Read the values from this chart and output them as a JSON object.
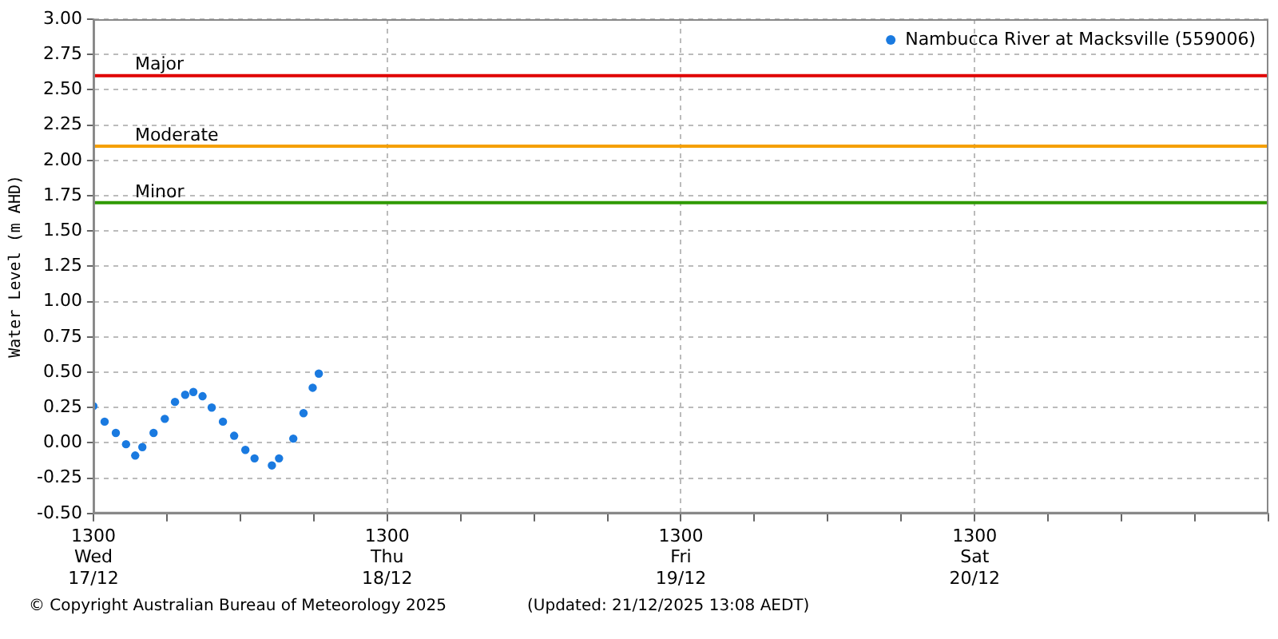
{
  "chart_data": {
    "type": "scatter",
    "ylabel": "Water Level (m AHD)",
    "marker": "circle",
    "legend": "top right",
    "grid": true,
    "x": [
      "2025-12-17T13:00",
      "2025-12-17T13:55",
      "2025-12-17T14:50",
      "2025-12-17T15:40",
      "2025-12-17T16:25",
      "2025-12-17T17:00",
      "2025-12-17T17:55",
      "2025-12-17T18:50",
      "2025-12-17T19:40",
      "2025-12-17T20:30",
      "2025-12-17T21:10",
      "2025-12-17T21:55",
      "2025-12-17T22:40",
      "2025-12-17T23:35",
      "2025-12-18T00:30",
      "2025-12-18T01:25",
      "2025-12-18T02:10",
      "2025-12-18T03:35",
      "2025-12-18T04:10",
      "2025-12-18T05:20",
      "2025-12-18T06:10",
      "2025-12-18T06:55",
      "2025-12-18T07:25"
    ],
    "series": [
      {
        "name": "Nambucca River at Macksville (559006)",
        "color": "#1a7ae0",
        "values": [
          0.26,
          0.15,
          0.07,
          -0.01,
          -0.09,
          -0.03,
          0.07,
          0.17,
          0.29,
          0.34,
          0.36,
          0.33,
          0.25,
          0.15,
          0.05,
          -0.05,
          -0.11,
          -0.16,
          -0.11,
          0.03,
          0.21,
          0.39,
          0.49
        ]
      }
    ],
    "xlim": [
      "2025-12-17T13:00",
      "2025-12-21T13:00"
    ],
    "xticks": [
      {
        "value": "2025-12-17T13:00",
        "label": "1300\nWed\n17/12"
      },
      {
        "value": "2025-12-17T19:00",
        "label": null
      },
      {
        "value": "2025-12-18T01:00",
        "label": null
      },
      {
        "value": "2025-12-18T07:00",
        "label": null
      },
      {
        "value": "2025-12-18T13:00",
        "label": "1300\nThu\n18/12"
      },
      {
        "value": "2025-12-18T19:00",
        "label": null
      },
      {
        "value": "2025-12-19T01:00",
        "label": null
      },
      {
        "value": "2025-12-19T07:00",
        "label": null
      },
      {
        "value": "2025-12-19T13:00",
        "label": "1300\nFri\n19/12"
      },
      {
        "value": "2025-12-19T19:00",
        "label": null
      },
      {
        "value": "2025-12-20T01:00",
        "label": null
      },
      {
        "value": "2025-12-20T07:00",
        "label": null
      },
      {
        "value": "2025-12-20T13:00",
        "label": "1300\nSat\n20/12"
      },
      {
        "value": "2025-12-20T19:00",
        "label": null
      },
      {
        "value": "2025-12-21T01:00",
        "label": null
      },
      {
        "value": "2025-12-21T07:00",
        "label": null
      },
      {
        "value": "2025-12-21T13:00",
        "label": null
      }
    ],
    "ylim": [
      -0.5,
      3.0
    ],
    "yticks": [
      {
        "value": -0.5,
        "label": "-0.50"
      },
      {
        "value": -0.25,
        "label": "-0.25"
      },
      {
        "value": 0,
        "label": "0.00"
      },
      {
        "value": 0.25,
        "label": "0.25"
      },
      {
        "value": 0.5,
        "label": "0.50"
      },
      {
        "value": 0.75,
        "label": "0.75"
      },
      {
        "value": 1,
        "label": "1.00"
      },
      {
        "value": 1.25,
        "label": "1.25"
      },
      {
        "value": 1.5,
        "label": "1.50"
      },
      {
        "value": 1.75,
        "label": "1.75"
      },
      {
        "value": 2,
        "label": "2.00"
      },
      {
        "value": 2.25,
        "label": "2.25"
      },
      {
        "value": 2.5,
        "label": "2.50"
      },
      {
        "value": 2.75,
        "label": "2.75"
      },
      {
        "value": 3,
        "label": "3.00"
      }
    ],
    "ref_lines": [
      {
        "axis": "y",
        "value": 2.6,
        "label": "Major",
        "color": "#e00000"
      },
      {
        "axis": "y",
        "value": 2.1,
        "label": "Moderate",
        "color": "#f5a000"
      },
      {
        "axis": "y",
        "value": 1.7,
        "label": "Minor",
        "color": "#2e9a00"
      }
    ],
    "annotations": [
      "© Copyright Australian Bureau of Meteorology 2025",
      "(Updated: 21/12/2025 13:08 AEDT)"
    ]
  }
}
